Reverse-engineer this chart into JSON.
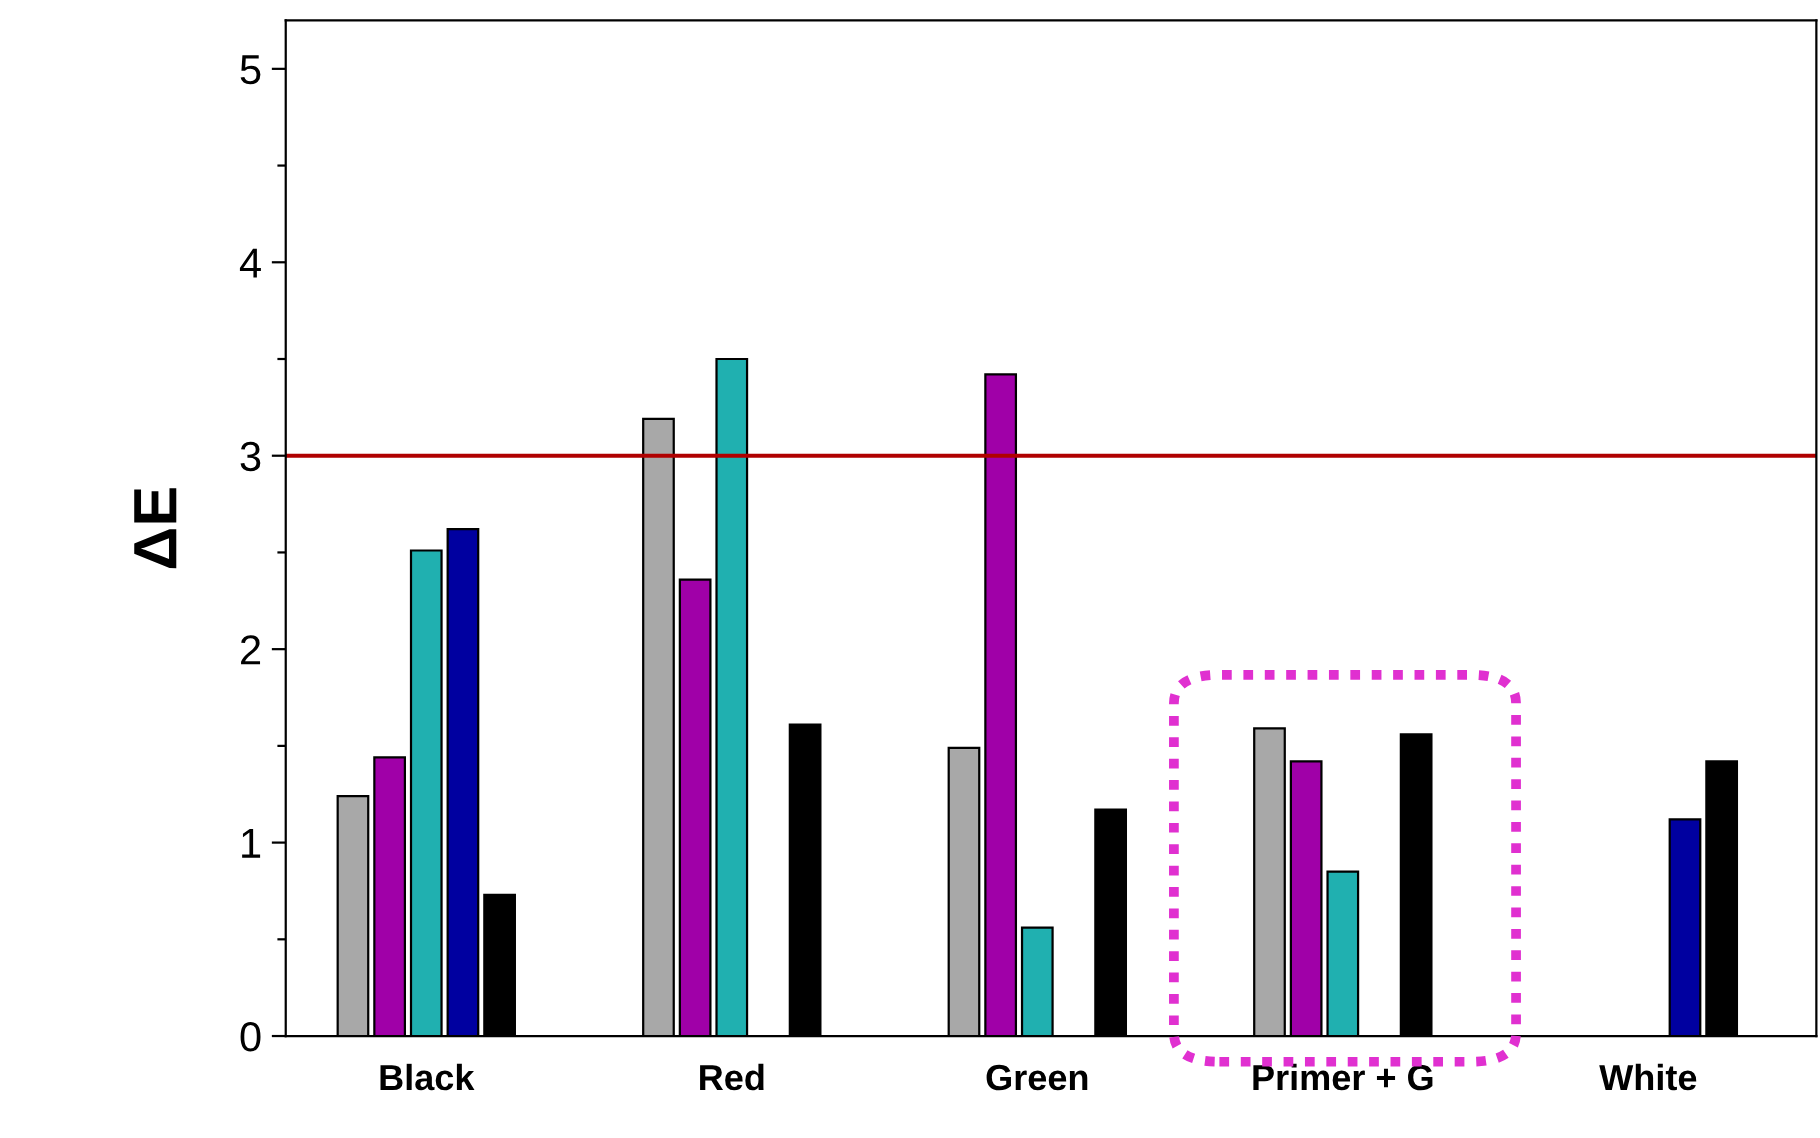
{
  "chart_data": {
    "type": "bar",
    "ylabel": "ΔE",
    "categories": [
      "Black",
      "Red",
      "Green",
      "Primer + G",
      "White"
    ],
    "series": [
      {
        "color": "#a8a8a8",
        "values": [
          1.24,
          3.19,
          1.49,
          1.59,
          null
        ]
      },
      {
        "color": "#a000a8",
        "values": [
          1.44,
          2.36,
          3.42,
          1.42,
          null
        ]
      },
      {
        "color": "#20b0b0",
        "values": [
          2.51,
          3.5,
          0.56,
          0.85,
          null
        ]
      },
      {
        "color": "#0000a0",
        "values": [
          2.62,
          null,
          null,
          null,
          1.12
        ]
      },
      {
        "color": "#000000",
        "values": [
          0.73,
          1.61,
          1.17,
          1.56,
          1.42
        ]
      }
    ],
    "ylim": [
      0,
      5.25
    ],
    "yticks": [
      0,
      {
        "value": 0.5,
        "label": null
      },
      1,
      {
        "value": 1.5,
        "label": null
      },
      2,
      {
        "value": 2.5,
        "label": null
      },
      3,
      {
        "value": 3.5,
        "label": null
      },
      4,
      {
        "value": 4.5,
        "label": null
      },
      5
    ],
    "ref_lines": [
      {
        "axis": "y",
        "value": 3,
        "color": "#b00000"
      }
    ],
    "grid": false
  }
}
